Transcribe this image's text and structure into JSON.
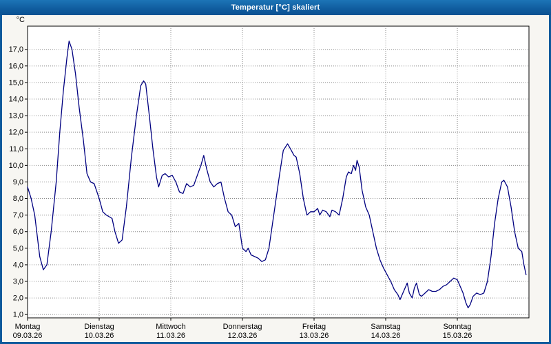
{
  "window": {
    "title": "Temperatur [°C] skaliert"
  },
  "chart": {
    "y_unit_label": "°C",
    "y_ticks": [
      "17,0",
      "16,0",
      "15,0",
      "14,0",
      "13,0",
      "12,0",
      "11,0",
      "10,0",
      "9,0",
      "8,0",
      "7,0",
      "6,0",
      "5,0",
      "4,0",
      "3,0",
      "2,0",
      "1,0"
    ],
    "x_ticks": [
      {
        "day": "Montag",
        "date": "09.03.26"
      },
      {
        "day": "Dienstag",
        "date": "10.03.26"
      },
      {
        "day": "Mittwoch",
        "date": "11.03.26"
      },
      {
        "day": "Donnerstag",
        "date": "12.03.26"
      },
      {
        "day": "Freitag",
        "date": "13.03.26"
      },
      {
        "day": "Samstag",
        "date": "14.03.26"
      },
      {
        "day": "Sonntag",
        "date": "15.03.26"
      }
    ]
  },
  "chart_data": {
    "type": "line",
    "title": "Temperatur [°C] skaliert",
    "xlabel": "",
    "ylabel": "°C",
    "x_unit": "days since Montag 09.03.26 00:00",
    "xlim": [
      0,
      7
    ],
    "ylim": [
      0.8,
      18.4
    ],
    "y_tick_values": [
      17,
      16,
      15,
      14,
      13,
      12,
      11,
      10,
      9,
      8,
      7,
      6,
      5,
      4,
      3,
      2,
      1
    ],
    "grid": "dotted",
    "legend": "none",
    "line_color": "#000080",
    "grid_color": "#8a8a8a",
    "frame_color": "#000000",
    "plot_bg": "#ffffff",
    "x": [
      0.0,
      0.05,
      0.1,
      0.17,
      0.22,
      0.27,
      0.33,
      0.4,
      0.45,
      0.5,
      0.55,
      0.58,
      0.62,
      0.67,
      0.72,
      0.78,
      0.83,
      0.88,
      0.93,
      1.0,
      1.05,
      1.1,
      1.18,
      1.22,
      1.27,
      1.32,
      1.38,
      1.45,
      1.52,
      1.58,
      1.62,
      1.65,
      1.7,
      1.75,
      1.8,
      1.83,
      1.88,
      1.92,
      1.97,
      2.02,
      2.07,
      2.12,
      2.17,
      2.22,
      2.27,
      2.32,
      2.37,
      2.42,
      2.46,
      2.5,
      2.55,
      2.6,
      2.65,
      2.7,
      2.75,
      2.8,
      2.85,
      2.9,
      2.95,
      3.0,
      3.05,
      3.08,
      3.12,
      3.17,
      3.22,
      3.27,
      3.32,
      3.37,
      3.42,
      3.47,
      3.52,
      3.57,
      3.63,
      3.67,
      3.72,
      3.75,
      3.8,
      3.85,
      3.9,
      3.95,
      4.0,
      4.05,
      4.08,
      4.12,
      4.17,
      4.22,
      4.25,
      4.3,
      4.35,
      4.4,
      4.45,
      4.48,
      4.52,
      4.55,
      4.58,
      4.6,
      4.63,
      4.67,
      4.72,
      4.77,
      4.82,
      4.87,
      4.92,
      4.97,
      5.02,
      5.07,
      5.12,
      5.17,
      5.2,
      5.25,
      5.3,
      5.33,
      5.37,
      5.4,
      5.43,
      5.47,
      5.5,
      5.55,
      5.6,
      5.65,
      5.7,
      5.75,
      5.8,
      5.85,
      5.9,
      5.95,
      6.0,
      6.05,
      6.08,
      6.12,
      6.15,
      6.18,
      6.22,
      6.27,
      6.32,
      6.37,
      6.42,
      6.47,
      6.52,
      6.57,
      6.62,
      6.65,
      6.7,
      6.75,
      6.8,
      6.85,
      6.9,
      6.93,
      6.96
    ],
    "y": [
      8.7,
      8.0,
      7.0,
      4.5,
      3.7,
      4.0,
      6.0,
      9.0,
      12.0,
      14.5,
      16.5,
      17.5,
      17.0,
      15.5,
      13.5,
      11.5,
      9.5,
      9.0,
      8.9,
      8.0,
      7.2,
      7.0,
      6.8,
      6.0,
      5.3,
      5.5,
      7.5,
      10.5,
      13.0,
      14.8,
      15.1,
      14.9,
      13.0,
      11.0,
      9.3,
      8.7,
      9.4,
      9.5,
      9.3,
      9.4,
      9.0,
      8.4,
      8.3,
      8.9,
      8.7,
      8.8,
      9.4,
      10.0,
      10.6,
      9.8,
      9.0,
      8.7,
      8.9,
      9.0,
      8.0,
      7.2,
      7.0,
      6.3,
      6.5,
      5.0,
      4.8,
      5.0,
      4.6,
      4.5,
      4.4,
      4.2,
      4.3,
      5.0,
      6.5,
      8.0,
      9.5,
      10.9,
      11.3,
      11.0,
      10.6,
      10.5,
      9.5,
      8.0,
      7.0,
      7.2,
      7.2,
      7.4,
      7.0,
      7.3,
      7.2,
      6.9,
      7.3,
      7.2,
      7.0,
      8.0,
      9.3,
      9.6,
      9.5,
      10.0,
      9.7,
      10.3,
      9.9,
      8.5,
      7.5,
      7.0,
      6.0,
      5.0,
      4.3,
      3.8,
      3.4,
      3.0,
      2.5,
      2.2,
      1.9,
      2.4,
      2.9,
      2.3,
      2.0,
      2.6,
      2.9,
      2.2,
      2.1,
      2.3,
      2.5,
      2.4,
      2.4,
      2.5,
      2.7,
      2.8,
      3.0,
      3.2,
      3.1,
      2.6,
      2.3,
      1.7,
      1.4,
      1.6,
      2.1,
      2.3,
      2.2,
      2.3,
      3.0,
      4.5,
      6.5,
      8.0,
      9.0,
      9.1,
      8.7,
      7.5,
      6.0,
      5.0,
      4.8,
      4.0,
      3.4
    ]
  }
}
